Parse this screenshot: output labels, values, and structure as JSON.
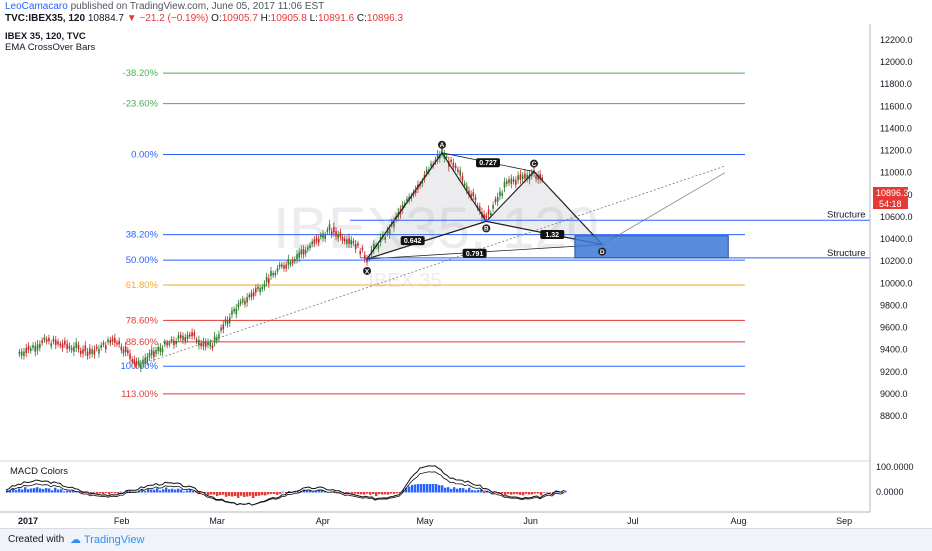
{
  "header": {
    "author": "LeoCamacaro",
    "published": "published on TradingView.com, June 05, 2017 11:06 EST",
    "symbol": "TVC:IBEX35, 120",
    "last": "10884.7",
    "change": "−21.2 (−0.19%)",
    "o_label": "O:",
    "o_value": "10905.7",
    "h_label": "H:",
    "h_value": "10905.8",
    "l_label": "L:",
    "l_value": "10891.6",
    "c_label": "C:",
    "c_value": "10896.3"
  },
  "legend": {
    "title": "IBEX 35, 120, TVC",
    "indicator": "EMA CrossOver Bars"
  },
  "watermark": {
    "big": "IBEX35, 120",
    "small": "IBEX 35"
  },
  "macd": {
    "label": "MACD Colors",
    "ticks": [
      "100.0000",
      "0.0000"
    ]
  },
  "footer": {
    "created": "Created with",
    "brand": "TradingView"
  },
  "price_badge": {
    "price": "10896.3",
    "timer": "54:18",
    "color": "#e53935"
  },
  "chart_data": {
    "type": "candlestick",
    "y_ticks": [
      12200,
      12000,
      11800,
      11600,
      11400,
      11200,
      11000,
      10800,
      10600,
      10400,
      10200,
      10000,
      9800,
      9600,
      9400,
      9200,
      9000,
      8800
    ],
    "y_tick_labels": [
      "12200.0",
      "12000.0",
      "11800.0",
      "11600.0",
      "11400.0",
      "11200.0",
      "11000.0",
      "10800.0",
      "10600.0",
      "10400.0",
      "10200.0",
      "10000.0",
      "9800.0",
      "9600.0",
      "9400.0",
      "9200.0",
      "9000.0",
      "8800.0"
    ],
    "x_ticks": [
      "2017",
      "Feb",
      "Mar",
      "Apr",
      "May",
      "Jun",
      "Jul",
      "Aug",
      "Sep"
    ],
    "fib_levels": [
      {
        "label": "-38.20%",
        "price": 11900,
        "color": "#4caf50"
      },
      {
        "label": "-23.60%",
        "price": 11625,
        "color": "#4caf50"
      },
      {
        "label": "0.00%",
        "price": 11165,
        "color": "#2962ff"
      },
      {
        "label": "38.20%",
        "price": 10440,
        "color": "#2962ff"
      },
      {
        "label": "50.00%",
        "price": 10210,
        "color": "#2962ff"
      },
      {
        "label": "61.80%",
        "price": 9985,
        "color": "#f9a825"
      },
      {
        "label": "78.60%",
        "price": 9665,
        "color": "#e53935"
      },
      {
        "label": "88.60%",
        "price": 9470,
        "color": "#e53935"
      },
      {
        "label": "100.00%",
        "price": 9250,
        "color": "#2962ff"
      },
      {
        "label": "113.00%",
        "price": 9000,
        "color": "#e53935"
      }
    ],
    "pattern_points": [
      {
        "label": "X",
        "date": "2017-04-14",
        "price": 10220
      },
      {
        "label": "A",
        "date": "2017-05-06",
        "price": 11180
      },
      {
        "label": "B",
        "date": "2017-05-19",
        "price": 10560
      },
      {
        "label": "C",
        "date": "2017-06-02",
        "price": 11010
      },
      {
        "label": "D",
        "date": "2017-06-22",
        "price": 10350
      }
    ],
    "ratios": [
      "0.727",
      "0.642",
      "0.791",
      "1.32"
    ],
    "structure_labels": [
      "Structure",
      "Structure"
    ],
    "prz_zone": {
      "date_from": "2017-06-14",
      "date_to": "2017-07-29",
      "price_low": 10230,
      "price_high": 10430,
      "color": "#3d78d8"
    },
    "price_path": [
      {
        "date": "2017-01-02",
        "price": 9370
      },
      {
        "date": "2017-01-10",
        "price": 9480
      },
      {
        "date": "2017-01-16",
        "price": 9430
      },
      {
        "date": "2017-01-24",
        "price": 9380
      },
      {
        "date": "2017-01-30",
        "price": 9500
      },
      {
        "date": "2017-02-06",
        "price": 9260
      },
      {
        "date": "2017-02-13",
        "price": 9420
      },
      {
        "date": "2017-02-21",
        "price": 9540
      },
      {
        "date": "2017-02-27",
        "price": 9420
      },
      {
        "date": "2017-03-06",
        "price": 9750
      },
      {
        "date": "2017-03-13",
        "price": 9950
      },
      {
        "date": "2017-03-20",
        "price": 10150
      },
      {
        "date": "2017-03-27",
        "price": 10300
      },
      {
        "date": "2017-04-03",
        "price": 10480
      },
      {
        "date": "2017-04-10",
        "price": 10380
      },
      {
        "date": "2017-04-14",
        "price": 10230
      },
      {
        "date": "2017-04-20",
        "price": 10450
      },
      {
        "date": "2017-04-27",
        "price": 10800
      },
      {
        "date": "2017-05-06",
        "price": 11180
      },
      {
        "date": "2017-05-12",
        "price": 10950
      },
      {
        "date": "2017-05-19",
        "price": 10580
      },
      {
        "date": "2017-05-25",
        "price": 10900
      },
      {
        "date": "2017-06-02",
        "price": 11000
      },
      {
        "date": "2017-06-05",
        "price": 10896
      }
    ]
  }
}
